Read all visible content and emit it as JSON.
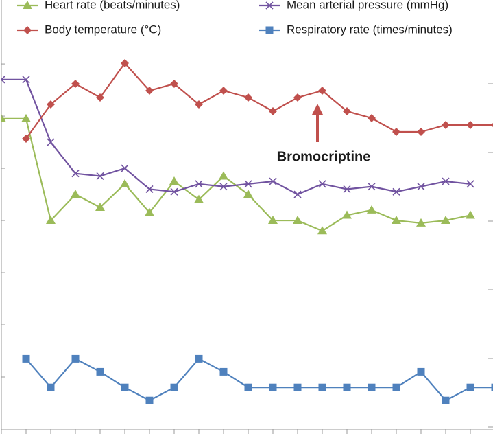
{
  "chart_data": {
    "type": "line",
    "annotation": "Bromocriptine",
    "categories": [
      null,
      null,
      null,
      null,
      null,
      null,
      null,
      null,
      null,
      null,
      null,
      null,
      null,
      null,
      null,
      null,
      null,
      null,
      null,
      null,
      null
    ],
    "ylim": [
      0,
      164.5
    ],
    "yticks": [
      0,
      20,
      40,
      60,
      80,
      100,
      120,
      140
    ],
    "y2lim": [
      35.97,
      42.22
    ],
    "y2ticks": [
      36,
      37,
      38,
      39,
      40,
      41
    ],
    "legend": "top",
    "series": [
      {
        "name": "Heart rate (beats/minutes)",
        "color": "#9bbb59",
        "marker": "triangle",
        "values": [
          119,
          119,
          80,
          90,
          85,
          94,
          83,
          95,
          88,
          97,
          90,
          80,
          80,
          76,
          82,
          84,
          80,
          79,
          80,
          82,
          null
        ]
      },
      {
        "name": "Mean arterial pressure (mmHg)",
        "color": "#7153a0",
        "marker": "x",
        "values": [
          134,
          134,
          110,
          98,
          97,
          100,
          92,
          91,
          94,
          93,
          94,
          95,
          90,
          94,
          92,
          93,
          91,
          93,
          95,
          94,
          null
        ]
      },
      {
        "name": "Body temperature (°C)",
        "color": "#c0504d",
        "marker": "diamond",
        "axis": "y2",
        "values": [
          null,
          40.2,
          40.7,
          41.0,
          40.8,
          41.3,
          40.9,
          41.0,
          40.7,
          40.9,
          40.8,
          40.6,
          40.8,
          40.9,
          40.6,
          40.5,
          40.3,
          40.3,
          40.4,
          40.4,
          40.4
        ]
      },
      {
        "name": "Respiratory rate (times/minutes)",
        "color": "#4f81bd",
        "marker": "square",
        "values": [
          null,
          27,
          16,
          27,
          22,
          16,
          11,
          16,
          27,
          22,
          16,
          16,
          16,
          16,
          16,
          16,
          16,
          22,
          11,
          16,
          16
        ]
      }
    ]
  }
}
